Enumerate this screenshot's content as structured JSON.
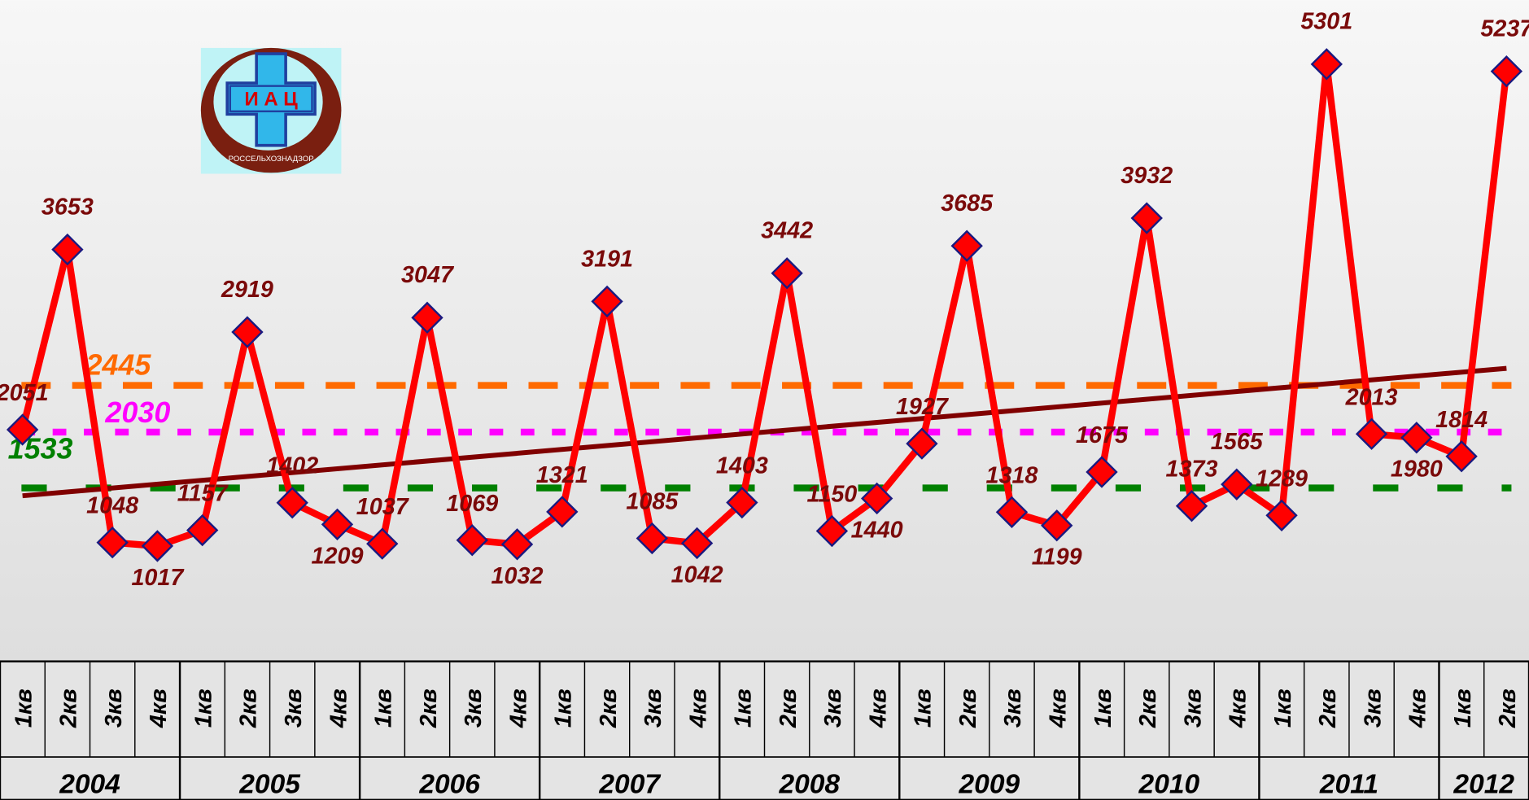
{
  "logo": {
    "title": "И А Ц",
    "caption": "РОССЕЛЬХОЗНАДЗОР"
  },
  "chart_data": {
    "type": "line",
    "categories": [
      "1кв",
      "2кв",
      "3кв",
      "4кв",
      "1кв",
      "2кв",
      "3кв",
      "4кв",
      "1кв",
      "2кв",
      "3кв",
      "4кв",
      "1кв",
      "2кв",
      "3кв",
      "4кв",
      "1кв",
      "2кв",
      "3кв",
      "4кв",
      "1кв",
      "2кв",
      "3кв",
      "4кв",
      "1кв",
      "2кв",
      "3кв",
      "4кв",
      "1кв",
      "2кв",
      "3кв",
      "4кв",
      "1кв",
      "2кв"
    ],
    "years": [
      "2004",
      "2005",
      "2006",
      "2007",
      "2008",
      "2009",
      "2010",
      "2011",
      "2012"
    ],
    "series": [
      {
        "color": "#ff0000",
        "values": [
          2051,
          3653,
          1048,
          1017,
          1157,
          2919,
          1402,
          1209,
          1037,
          3047,
          1069,
          1032,
          1321,
          3191,
          1085,
          1042,
          1403,
          3442,
          1150,
          1440,
          1927,
          3685,
          1318,
          1199,
          1675,
          3932,
          1373,
          1565,
          1289,
          5301,
          2013,
          1980,
          1814,
          5237
        ]
      }
    ],
    "reference_lines": [
      {
        "value": 2445,
        "color": "#ff6a00",
        "style": "dashed"
      },
      {
        "value": 2030,
        "color": "#ff00ff",
        "style": "dotted"
      },
      {
        "value": 1533,
        "color": "#008000",
        "style": "dashdot"
      }
    ],
    "trendline": {
      "color": "#800000"
    },
    "ylim": [
      0,
      5870
    ]
  }
}
